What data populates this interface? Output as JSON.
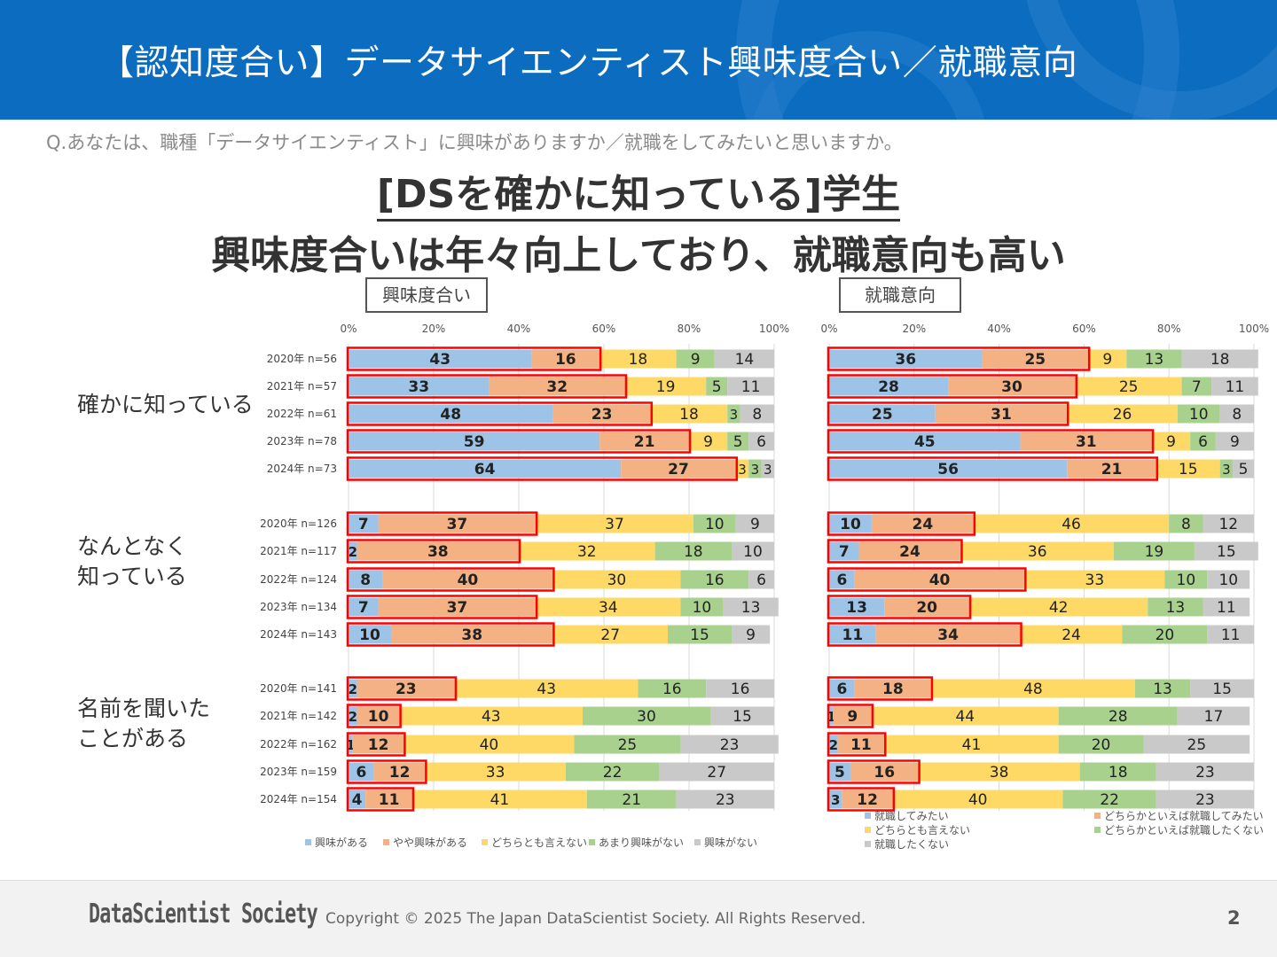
{
  "header": {
    "title": "【認知度合い】データサイエンティスト興味度合い／就職意向"
  },
  "question": "Q.あなたは、職種「データサイエンティスト」に興味がありますか／就職をしてみたいと思いますか。",
  "headline": {
    "line1": "[DSを確かに知っている]学生",
    "line2": "興味度合いは年々向上しており、就職意向も高い"
  },
  "panels": {
    "left_label": "興味度合い",
    "right_label": "就職意向"
  },
  "groups": [
    {
      "label_line1": "確かに知っている",
      "label_line2": ""
    },
    {
      "label_line1": "なんとなく",
      "label_line2": "知っている"
    },
    {
      "label_line1": "名前を聞いた",
      "label_line2": "ことがある"
    }
  ],
  "footer": {
    "logo": "DataScientist Society",
    "copyright": "Copyright © 2025 The Japan DataScientist Society. All Rights Reserved.",
    "page": "2"
  },
  "colors": {
    "header_bg": "#0b6cc0",
    "c1": "#9dc3e6",
    "c2": "#f4b183",
    "c3": "#ffd966",
    "c4": "#a9d18e",
    "c5": "#c9c9c9",
    "highlight": "#ff0000"
  },
  "chart_data": [
    {
      "type": "bar",
      "stacked": true,
      "orientation": "horizontal",
      "title": "興味度合い",
      "xlim": [
        0,
        100
      ],
      "xticks": [
        "0%",
        "20%",
        "40%",
        "60%",
        "80%",
        "100%"
      ],
      "categories": [
        "2020年 n=56",
        "2021年 n=57",
        "2022年 n=61",
        "2023年 n=78",
        "2024年 n=73",
        "2020年 n=126",
        "2021年 n=117",
        "2022年 n=124",
        "2023年 n=134",
        "2024年 n=143",
        "2020年 n=141",
        "2021年 n=142",
        "2022年 n=162",
        "2023年 n=159",
        "2024年 n=154"
      ],
      "series": [
        {
          "name": "興味がある",
          "values": [
            43,
            33,
            48,
            59,
            64,
            7,
            2,
            8,
            7,
            10,
            2,
            2,
            1,
            6,
            4
          ]
        },
        {
          "name": "やや興味がある",
          "values": [
            16,
            32,
            23,
            21,
            27,
            37,
            38,
            40,
            37,
            38,
            23,
            10,
            12,
            12,
            11
          ]
        },
        {
          "name": "どちらとも言えない",
          "values": [
            18,
            19,
            18,
            9,
            3,
            37,
            32,
            30,
            34,
            27,
            43,
            43,
            40,
            33,
            41
          ]
        },
        {
          "name": "あまり興味がない",
          "values": [
            9,
            5,
            3,
            5,
            3,
            10,
            18,
            16,
            10,
            15,
            16,
            30,
            25,
            22,
            21
          ]
        },
        {
          "name": "興味がない",
          "values": [
            14,
            11,
            8,
            6,
            3,
            9,
            10,
            6,
            13,
            9,
            16,
            15,
            23,
            27,
            23
          ]
        }
      ],
      "highlight": "series 1+2 outlined in red",
      "legend": "bottom"
    },
    {
      "type": "bar",
      "stacked": true,
      "orientation": "horizontal",
      "title": "就職意向",
      "xlim": [
        0,
        100
      ],
      "xticks": [
        "0%",
        "20%",
        "40%",
        "60%",
        "80%",
        "100%"
      ],
      "categories": [
        "2020年 n=56",
        "2021年 n=57",
        "2022年 n=61",
        "2023年 n=78",
        "2024年 n=73",
        "2020年 n=126",
        "2021年 n=117",
        "2022年 n=124",
        "2023年 n=134",
        "2024年 n=143",
        "2020年 n=141",
        "2021年 n=142",
        "2022年 n=162",
        "2023年 n=159",
        "2024年 n=154"
      ],
      "series": [
        {
          "name": "就職してみたい",
          "values": [
            36,
            28,
            25,
            45,
            56,
            10,
            7,
            6,
            13,
            11,
            6,
            1,
            2,
            5,
            3
          ]
        },
        {
          "name": "どちらかといえば就職してみたい",
          "values": [
            25,
            30,
            31,
            31,
            21,
            24,
            24,
            40,
            20,
            34,
            18,
            9,
            11,
            16,
            12
          ]
        },
        {
          "name": "どちらとも言えない",
          "values": [
            9,
            25,
            26,
            9,
            15,
            46,
            36,
            33,
            42,
            24,
            48,
            44,
            41,
            38,
            40
          ]
        },
        {
          "name": "どちらかといえば就職したくない",
          "values": [
            13,
            7,
            10,
            6,
            3,
            8,
            19,
            10,
            13,
            20,
            13,
            28,
            20,
            18,
            22
          ]
        },
        {
          "name": "就職したくない",
          "values": [
            18,
            11,
            8,
            9,
            5,
            12,
            15,
            10,
            11,
            11,
            15,
            17,
            25,
            23,
            23
          ]
        }
      ],
      "highlight": "series 1+2 outlined in red",
      "legend": "bottom"
    }
  ]
}
